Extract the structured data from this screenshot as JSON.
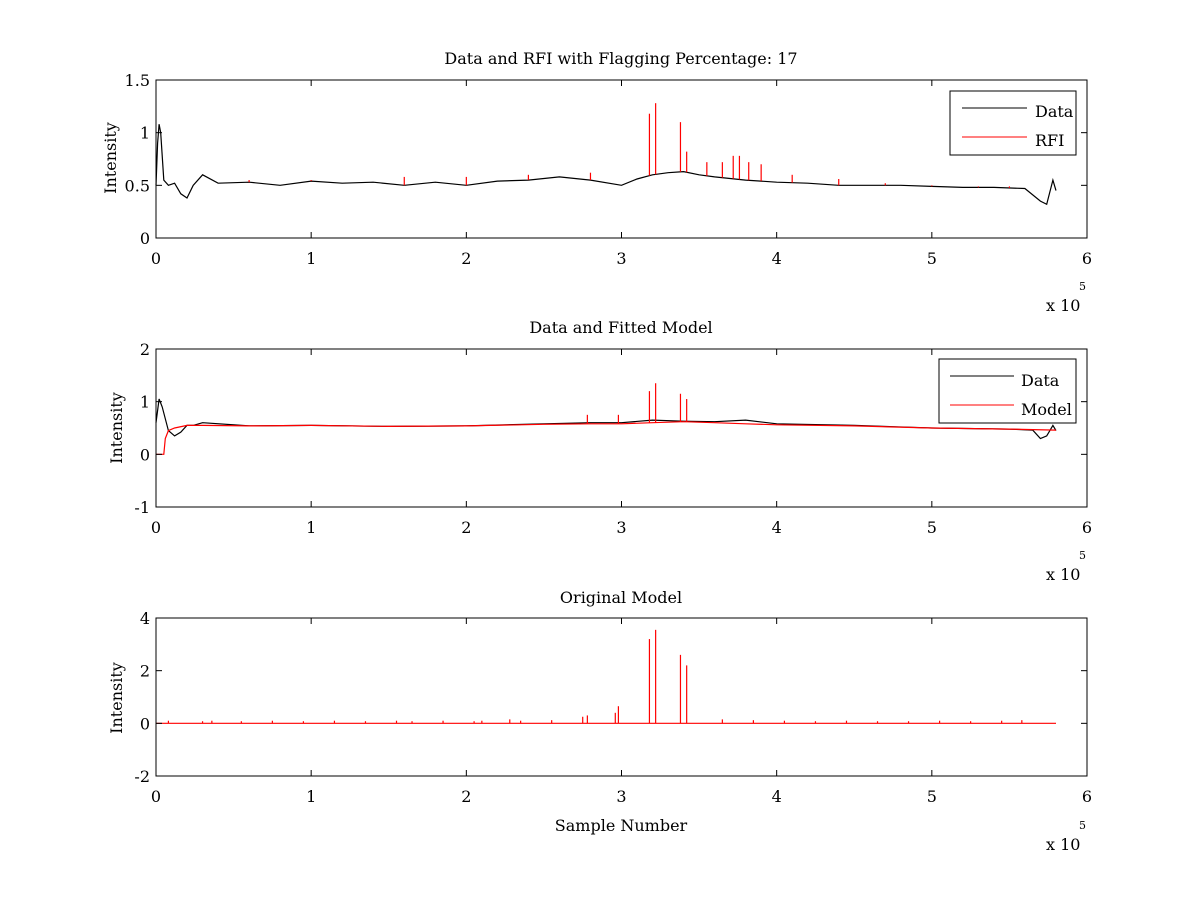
{
  "colors": {
    "data": "#000000",
    "rfi": "#ff0000",
    "model": "#ff0000",
    "axes": "#000000",
    "background": "#ffffff"
  },
  "chart_data": [
    {
      "type": "line",
      "title": "Data and RFI with Flagging Percentage: 17",
      "xlabel": "",
      "ylabel": "Intensity",
      "xlim": [
        0,
        600000
      ],
      "ylim": [
        0,
        1.5
      ],
      "xticks": [
        0,
        1,
        2,
        3,
        4,
        5,
        6
      ],
      "yticks": [
        0,
        0.5,
        1,
        1.5
      ],
      "x_multiplier_label": "x 10",
      "x_multiplier_exponent": "5",
      "legend": [
        "Data",
        "RFI"
      ],
      "legend_position": "top-right",
      "series": [
        {
          "name": "Data",
          "color": "#000000",
          "x": [
            0,
            1000,
            2000,
            3000,
            5000,
            8000,
            12000,
            16000,
            20000,
            24000,
            30000,
            40000,
            60000,
            80000,
            100000,
            120000,
            140000,
            160000,
            180000,
            200000,
            220000,
            240000,
            260000,
            280000,
            300000,
            310000,
            320000,
            330000,
            340000,
            350000,
            360000,
            380000,
            400000,
            420000,
            440000,
            460000,
            480000,
            500000,
            520000,
            540000,
            560000,
            570000,
            574000,
            578000,
            580000
          ],
          "y": [
            0.5,
            0.9,
            1.08,
            1.0,
            0.55,
            0.5,
            0.52,
            0.42,
            0.38,
            0.5,
            0.6,
            0.52,
            0.53,
            0.5,
            0.54,
            0.52,
            0.53,
            0.5,
            0.53,
            0.5,
            0.54,
            0.55,
            0.58,
            0.55,
            0.5,
            0.56,
            0.6,
            0.62,
            0.63,
            0.6,
            0.58,
            0.55,
            0.53,
            0.52,
            0.5,
            0.5,
            0.5,
            0.49,
            0.48,
            0.48,
            0.47,
            0.35,
            0.32,
            0.55,
            0.45
          ]
        },
        {
          "name": "RFI",
          "color": "#ff0000",
          "spikes": [
            [
              60000,
              0.55
            ],
            [
              100000,
              0.55
            ],
            [
              160000,
              0.58
            ],
            [
              200000,
              0.58
            ],
            [
              240000,
              0.6
            ],
            [
              280000,
              0.62
            ],
            [
              318000,
              1.18
            ],
            [
              322000,
              1.28
            ],
            [
              338000,
              1.1
            ],
            [
              342000,
              0.82
            ],
            [
              355000,
              0.72
            ],
            [
              365000,
              0.72
            ],
            [
              372000,
              0.78
            ],
            [
              376000,
              0.78
            ],
            [
              382000,
              0.72
            ],
            [
              390000,
              0.7
            ],
            [
              410000,
              0.6
            ],
            [
              440000,
              0.56
            ],
            [
              470000,
              0.52
            ],
            [
              500000,
              0.5
            ],
            [
              530000,
              0.49
            ],
            [
              550000,
              0.49
            ]
          ]
        }
      ]
    },
    {
      "type": "line",
      "title": "Data and Fitted Model",
      "xlabel": "",
      "ylabel": "Intensity",
      "xlim": [
        0,
        600000
      ],
      "ylim": [
        -1,
        2
      ],
      "xticks": [
        0,
        1,
        2,
        3,
        4,
        5,
        6
      ],
      "yticks": [
        -1,
        0,
        1,
        2
      ],
      "x_multiplier_label": "x 10",
      "x_multiplier_exponent": "5",
      "legend": [
        "Data",
        "Model"
      ],
      "legend_position": "top-right",
      "series": [
        {
          "name": "Data",
          "color": "#000000",
          "x": [
            0,
            2000,
            4000,
            8000,
            12000,
            16000,
            20000,
            24000,
            30000,
            60000,
            100000,
            150000,
            200000,
            250000,
            280000,
            300000,
            320000,
            340000,
            360000,
            380000,
            400000,
            450000,
            500000,
            550000,
            565000,
            570000,
            574000,
            578000,
            580000
          ],
          "y": [
            0.6,
            1.05,
            0.9,
            0.45,
            0.35,
            0.42,
            0.55,
            0.55,
            0.6,
            0.54,
            0.55,
            0.53,
            0.54,
            0.58,
            0.6,
            0.6,
            0.65,
            0.63,
            0.62,
            0.65,
            0.58,
            0.55,
            0.5,
            0.48,
            0.46,
            0.3,
            0.35,
            0.55,
            0.45
          ]
        },
        {
          "name": "Model",
          "color": "#ff0000",
          "x": [
            0,
            5000,
            6000,
            8000,
            12000,
            20000,
            30000,
            60000,
            100000,
            150000,
            200000,
            250000,
            280000,
            300000,
            320000,
            340000,
            360000,
            380000,
            400000,
            450000,
            500000,
            550000,
            580000
          ],
          "y": [
            0.0,
            0.0,
            0.3,
            0.45,
            0.5,
            0.55,
            0.55,
            0.54,
            0.55,
            0.53,
            0.54,
            0.57,
            0.58,
            0.58,
            0.6,
            0.62,
            0.6,
            0.58,
            0.56,
            0.54,
            0.5,
            0.48,
            0.46
          ],
          "spikes": [
            [
              278000,
              0.75
            ],
            [
              298000,
              0.75
            ],
            [
              318000,
              1.2
            ],
            [
              322000,
              1.35
            ],
            [
              338000,
              1.15
            ],
            [
              342000,
              1.05
            ]
          ]
        }
      ]
    },
    {
      "type": "line",
      "title": "Original Model",
      "xlabel": "Sample Number",
      "ylabel": "Intensity",
      "xlim": [
        0,
        600000
      ],
      "ylim": [
        -2,
        4
      ],
      "xticks": [
        0,
        1,
        2,
        3,
        4,
        5,
        6
      ],
      "yticks": [
        -2,
        0,
        2,
        4
      ],
      "x_multiplier_label": "x 10",
      "x_multiplier_exponent": "5",
      "series": [
        {
          "name": "Model",
          "color": "#ff0000",
          "x": [
            0,
            580000
          ],
          "y": [
            0,
            0
          ],
          "spikes": [
            [
              8000,
              0.1
            ],
            [
              30000,
              0.08
            ],
            [
              36000,
              0.1
            ],
            [
              55000,
              0.08
            ],
            [
              75000,
              0.1
            ],
            [
              95000,
              0.08
            ],
            [
              115000,
              0.1
            ],
            [
              135000,
              0.08
            ],
            [
              155000,
              0.1
            ],
            [
              165000,
              0.08
            ],
            [
              185000,
              0.1
            ],
            [
              205000,
              0.08
            ],
            [
              210000,
              0.1
            ],
            [
              228000,
              0.15
            ],
            [
              235000,
              0.1
            ],
            [
              255000,
              0.12
            ],
            [
              275000,
              0.25
            ],
            [
              278000,
              0.3
            ],
            [
              296000,
              0.4
            ],
            [
              298000,
              0.65
            ],
            [
              318000,
              3.2
            ],
            [
              322000,
              3.55
            ],
            [
              338000,
              2.6
            ],
            [
              342000,
              2.2
            ],
            [
              365000,
              0.15
            ],
            [
              385000,
              0.12
            ],
            [
              405000,
              0.1
            ],
            [
              425000,
              0.08
            ],
            [
              445000,
              0.1
            ],
            [
              465000,
              0.08
            ],
            [
              485000,
              0.08
            ],
            [
              505000,
              0.1
            ],
            [
              525000,
              0.08
            ],
            [
              545000,
              0.1
            ],
            [
              558000,
              0.12
            ]
          ]
        }
      ]
    }
  ]
}
